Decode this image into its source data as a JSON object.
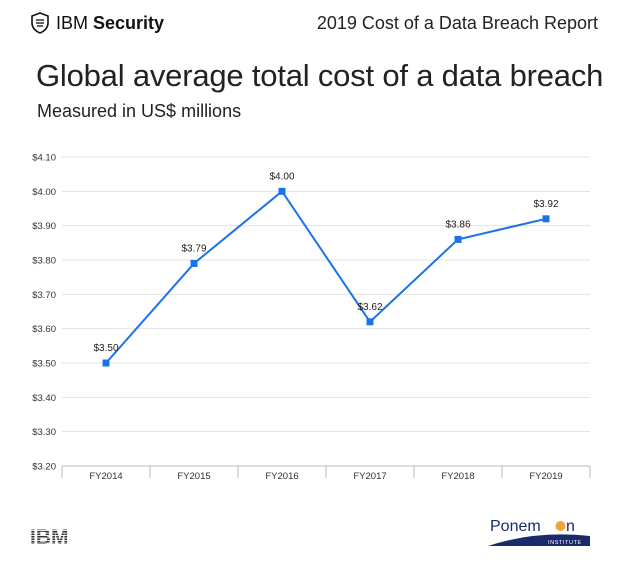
{
  "header": {
    "brand_first": "IBM",
    "brand_second": "Security",
    "brand_icon": "shield-icon",
    "report_title": "2019 Cost of a Data Breach Report"
  },
  "footer": {
    "left_logo": "IBM",
    "right_logo_pre": "Ponem",
    "right_logo_post": "n",
    "right_logo_sub": "INSTITUTE"
  },
  "colors": {
    "line": "#1a73e8",
    "ponemon_orange": "#f2a33a",
    "ponemon_navy": "#1b2a6b"
  },
  "chart_data": {
    "type": "line",
    "title": "Global average total cost of a data breach",
    "subtitle": "Measured in US$ millions",
    "categories": [
      "FY2014",
      "FY2015",
      "FY2016",
      "FY2017",
      "FY2018",
      "FY2019"
    ],
    "values": [
      3.5,
      3.79,
      4.0,
      3.62,
      3.86,
      3.92
    ],
    "data_labels": [
      "$3.50",
      "$3.79",
      "$4.00",
      "$3.62",
      "$3.86",
      "$3.92"
    ],
    "yticks": [
      "$3.20",
      "$3.30",
      "$3.40",
      "$3.50",
      "$3.60",
      "$3.70",
      "$3.80",
      "$3.90",
      "$4.00",
      "$4.10"
    ],
    "ylim": [
      3.2,
      4.1
    ],
    "grid": true,
    "legend": "none"
  }
}
